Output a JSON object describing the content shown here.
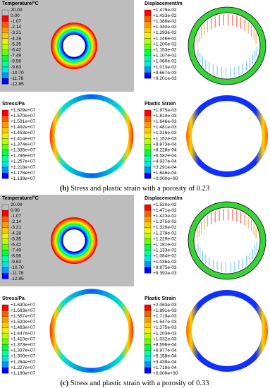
{
  "panels": [
    {
      "caption": {
        "label": "(b)",
        "text": "Stress and plastic strain with a porosity of 0.23"
      },
      "legends": [
        {
          "title": "Temperature/°C",
          "labels": [
            "20.00",
            "0.00",
            "-1.07",
            "-2.14",
            "-3.21",
            "-4.28",
            "-5.35",
            "-6.42",
            "-7.49",
            "-8.56",
            "-9.63",
            "-10.70",
            "-11.78",
            "-12.85"
          ]
        },
        {
          "title": "Displacement/m",
          "labels": [
            "+1.479e-02",
            "+1.433e-02",
            "+1.386e-02",
            "+1.340e-02",
            "+1.293e-02",
            "+1.246e-02",
            "+1.200e-02",
            "+1.153e-02",
            "+1.107e-02",
            "+1.060e-02",
            "+1.013e-02",
            "+9.667e-03",
            "+9.201e-03"
          ]
        },
        {
          "title": "Stress/Pa",
          "labels": [
            "+1.609e+07",
            "+1.570e+07",
            "+1.531e+07",
            "+1.492e+07",
            "+1.453e+07",
            "+1.414e+07",
            "+1.374e+07",
            "+1.335e+07",
            "+1.296e+07",
            "+1.257e+07",
            "+1.218e+07",
            "+1.178e+07",
            "+1.139e+07"
          ]
        },
        {
          "title": "Plastic Strain",
          "labels": [
            "+1.975e-03",
            "+1.810e-03",
            "+1.646e-03",
            "+1.481e-03",
            "+1.316e-03",
            "+1.152e-03",
            "+9.873e-04",
            "+8.228e-04",
            "+6.582e-04",
            "+4.937e-04",
            "+3.291e-04",
            "+1.646e-04",
            "+0.000e+00"
          ]
        }
      ]
    },
    {
      "caption": {
        "label": "(c)",
        "text": "Stress and plastic strain with a porosity of 0.33"
      },
      "legends": [
        {
          "title": "Temperature/°C",
          "labels": [
            "20.00",
            "0.00",
            "-1.07",
            "-2.14",
            "-3.21",
            "-4.28",
            "-5.35",
            "-6.42",
            "-7.49",
            "-8.56",
            "-9.63",
            "-10.70",
            "-11.78",
            "-12.85"
          ]
        },
        {
          "title": "Displacement/m",
          "labels": [
            "+1.520e-02",
            "+1.471e-02",
            "+1.423e-02",
            "+1.375e-02",
            "+1.326e-02",
            "+1.278e-02",
            "+1.229e-02",
            "+1.181e-02",
            "+1.133e-02",
            "+1.084e-02",
            "+1.036e-02",
            "+9.875e-03",
            "+9.392e-03"
          ]
        },
        {
          "title": "Stress/Pa",
          "labels": [
            "+1.630e+07",
            "+1.593e+07",
            "+1.557e+07",
            "+1.520e+07",
            "+1.483e+07",
            "+1.447e+07",
            "+1.410e+07",
            "+1.373e+07",
            "+1.337e+07",
            "+1.300e+07",
            "+1.264e+07",
            "+1.227e+07",
            "+1.190e+07"
          ]
        },
        {
          "title": "Plastic Strain",
          "labels": [
            "+2.063e-03",
            "+1.891e-03",
            "+1.719e-03",
            "+1.547e-03",
            "+1.375e-03",
            "+1.203e-03",
            "+1.032e-03",
            "+8.596e-04",
            "+6.877e-04",
            "+5.158e-04",
            "+3.439e-04",
            "+1.719e-04",
            "+0.000e+00"
          ]
        }
      ]
    }
  ]
}
